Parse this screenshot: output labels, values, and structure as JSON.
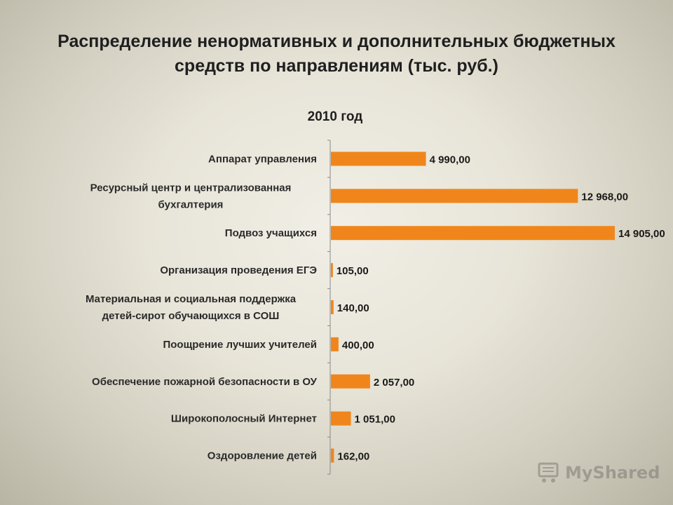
{
  "title_line1": "Распределение ненормативных и дополнительных бюджетных",
  "title_line2": "средств по направлениям (тыс. руб.)",
  "chart_data": {
    "type": "bar",
    "orientation": "horizontal",
    "title": "2010 год",
    "categories": [
      [
        "Аппарат управления"
      ],
      [
        "Ресурсный центр и централизованная",
        "бухгалтерия"
      ],
      [
        "Подвоз учащихся"
      ],
      [
        "Организация проведения ЕГЭ"
      ],
      [
        "Материальная и социальная поддержка",
        "детей-сирот обучающихся в СОШ"
      ],
      [
        "Поощрение лучших учителей"
      ],
      [
        "Обеспечение пожарной безопасности в ОУ"
      ],
      [
        "Широкополосный Интернет"
      ],
      [
        "Оздоровление детей"
      ]
    ],
    "values": [
      4990,
      12968,
      14905,
      105,
      140,
      400,
      2057,
      1051,
      162
    ],
    "data_labels": [
      "4 990,00",
      "12 968,00",
      "14 905,00",
      "105,00",
      "140,00",
      "400,00",
      "2 057,00",
      "1 051,00",
      "162,00"
    ],
    "bar_color": "#f0861b",
    "grid": false,
    "legend": "none"
  },
  "watermark": {
    "text": "MyShared",
    "icon": "shopping-cart-icon"
  }
}
